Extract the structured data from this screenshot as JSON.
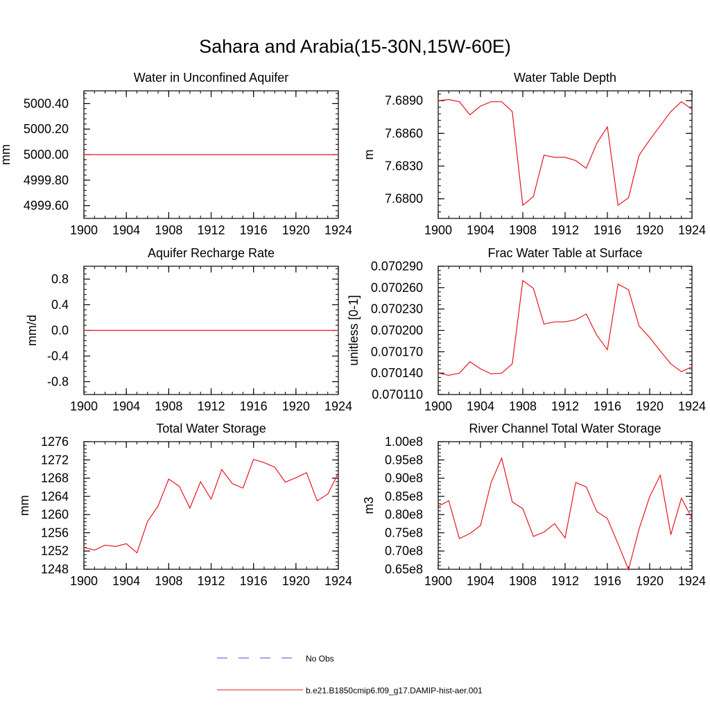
{
  "figure": {
    "title": "Sahara and Arabia(15-30N,15W-60E)",
    "legend": [
      {
        "label": "No Obs",
        "color": "#4a4ad6",
        "style": "dashed"
      },
      {
        "label": "b.e21.B1850cmip6.f09_g17.DAMIP-hist-aer.001",
        "color": "#e8141e",
        "style": "solid"
      }
    ]
  },
  "chart_data": [
    {
      "type": "line",
      "title": "Water in Unconfined Aquifer",
      "xlabel": "",
      "ylabel": "mm",
      "xlim": [
        1900,
        1924
      ],
      "ylim": [
        4999.5,
        5000.5
      ],
      "xticks": [
        "1900",
        "1904",
        "1908",
        "1912",
        "1916",
        "1920",
        "1924"
      ],
      "yticks": [
        {
          "v": 5000.4,
          "label": "5000.40"
        },
        {
          "v": 5000.2,
          "label": "5000.20"
        },
        {
          "v": 5000.0,
          "label": "5000.00"
        },
        {
          "v": 4999.8,
          "label": "4999.80"
        },
        {
          "v": 4999.6,
          "label": "4999.60"
        }
      ],
      "series": [
        {
          "color": "#e8141e",
          "x": [
            1900,
            1901,
            1902,
            1903,
            1904,
            1905,
            1906,
            1907,
            1908,
            1909,
            1910,
            1911,
            1912,
            1913,
            1914,
            1915,
            1916,
            1917,
            1918,
            1919,
            1920,
            1921,
            1922,
            1923,
            1924
          ],
          "values": [
            5000,
            5000,
            5000,
            5000,
            5000,
            5000,
            5000,
            5000,
            5000,
            5000,
            5000,
            5000,
            5000,
            5000,
            5000,
            5000,
            5000,
            5000,
            5000,
            5000,
            5000,
            5000,
            5000,
            5000,
            5000
          ]
        }
      ]
    },
    {
      "type": "line",
      "title": "Water Table Depth",
      "xlabel": "",
      "ylabel": "m",
      "xlim": [
        1900,
        1924
      ],
      "ylim": [
        7.6782,
        7.6899
      ],
      "xticks": [
        "1900",
        "1904",
        "1908",
        "1912",
        "1916",
        "1920",
        "1924"
      ],
      "yticks": [
        {
          "v": 7.689,
          "label": "7.6890"
        },
        {
          "v": 7.686,
          "label": "7.6860"
        },
        {
          "v": 7.683,
          "label": "7.6830"
        },
        {
          "v": 7.68,
          "label": "7.6800"
        }
      ],
      "series": [
        {
          "color": "#e8141e",
          "x": [
            1900,
            1901,
            1902,
            1903,
            1904,
            1905,
            1906,
            1907,
            1908,
            1909,
            1910,
            1911,
            1912,
            1913,
            1914,
            1915,
            1916,
            1917,
            1918,
            1919,
            1920,
            1921,
            1922,
            1923,
            1924
          ],
          "values": [
            7.689,
            7.6891,
            7.6889,
            7.6877,
            7.6885,
            7.6889,
            7.6889,
            7.688,
            7.6794,
            7.6802,
            7.684,
            7.6838,
            7.6838,
            7.6835,
            7.6828,
            7.6851,
            7.6866,
            7.6794,
            7.6801,
            7.684,
            7.6854,
            7.6867,
            7.688,
            7.6889,
            7.6882
          ]
        }
      ]
    },
    {
      "type": "line",
      "title": "Aquifer Recharge Rate",
      "xlabel": "",
      "ylabel": "mm/d",
      "xlim": [
        1900,
        1924
      ],
      "ylim": [
        -1.0,
        1.0
      ],
      "xticks": [
        "1900",
        "1904",
        "1908",
        "1912",
        "1916",
        "1920",
        "1924"
      ],
      "yticks": [
        {
          "v": 0.8,
          "label": "0.8"
        },
        {
          "v": 0.4,
          "label": "0.4"
        },
        {
          "v": 0.0,
          "label": "0.0"
        },
        {
          "v": -0.4,
          "label": "-0.4"
        },
        {
          "v": -0.8,
          "label": "-0.8"
        }
      ],
      "series": [
        {
          "color": "#e8141e",
          "x": [
            1900,
            1901,
            1902,
            1903,
            1904,
            1905,
            1906,
            1907,
            1908,
            1909,
            1910,
            1911,
            1912,
            1913,
            1914,
            1915,
            1916,
            1917,
            1918,
            1919,
            1920,
            1921,
            1922,
            1923,
            1924
          ],
          "values": [
            0,
            0,
            0,
            0,
            0,
            0,
            0,
            0,
            0,
            0,
            0,
            0,
            0,
            0,
            0,
            0,
            0,
            0,
            0,
            0,
            0,
            0,
            0,
            0,
            0
          ]
        }
      ]
    },
    {
      "type": "line",
      "title": "Frac Water Table at Surface",
      "xlabel": "",
      "ylabel": "unitless [0-1]",
      "xlim": [
        1900,
        1924
      ],
      "ylim": [
        0.07011,
        0.07029
      ],
      "xticks": [
        "1900",
        "1904",
        "1908",
        "1912",
        "1916",
        "1920",
        "1924"
      ],
      "yticks": [
        {
          "v": 0.07029,
          "label": "0.070290"
        },
        {
          "v": 0.07026,
          "label": "0.070260"
        },
        {
          "v": 0.07023,
          "label": "0.070230"
        },
        {
          "v": 0.0702,
          "label": "0.070200"
        },
        {
          "v": 0.07017,
          "label": "0.070170"
        },
        {
          "v": 0.07014,
          "label": "0.070140"
        },
        {
          "v": 0.07011,
          "label": "0.070110"
        }
      ],
      "series": [
        {
          "color": "#e8141e",
          "x": [
            1900,
            1901,
            1902,
            1903,
            1904,
            1905,
            1906,
            1907,
            1908,
            1909,
            1910,
            1911,
            1912,
            1913,
            1914,
            1915,
            1916,
            1917,
            1918,
            1919,
            1920,
            1921,
            1922,
            1923,
            1924
          ],
          "values": [
            0.07014,
            0.070137,
            0.07014,
            0.070156,
            0.070146,
            0.070139,
            0.07014,
            0.070153,
            0.07027,
            0.070259,
            0.070209,
            0.070212,
            0.070212,
            0.070215,
            0.070223,
            0.070193,
            0.070173,
            0.070265,
            0.070257,
            0.070206,
            0.07019,
            0.070171,
            0.070153,
            0.070142,
            0.070149
          ]
        }
      ]
    },
    {
      "type": "line",
      "title": "Total Water Storage",
      "xlabel": "",
      "ylabel": "mm",
      "xlim": [
        1900,
        1924
      ],
      "ylim": [
        1248,
        1276
      ],
      "xticks": [
        "1900",
        "1904",
        "1908",
        "1912",
        "1916",
        "1920",
        "1924"
      ],
      "yticks": [
        {
          "v": 1276,
          "label": "1276"
        },
        {
          "v": 1272,
          "label": "1272"
        },
        {
          "v": 1268,
          "label": "1268"
        },
        {
          "v": 1264,
          "label": "1264"
        },
        {
          "v": 1260,
          "label": "1260"
        },
        {
          "v": 1256,
          "label": "1256"
        },
        {
          "v": 1252,
          "label": "1252"
        },
        {
          "v": 1248,
          "label": "1248"
        }
      ],
      "series": [
        {
          "color": "#e8141e",
          "x": [
            1900,
            1901,
            1902,
            1903,
            1904,
            1905,
            1906,
            1907,
            1908,
            1909,
            1910,
            1911,
            1912,
            1913,
            1914,
            1915,
            1916,
            1917,
            1918,
            1919,
            1920,
            1921,
            1922,
            1923,
            1924
          ],
          "values": [
            1252.8,
            1252.2,
            1253.3,
            1253.0,
            1253.6,
            1251.6,
            1258.5,
            1261.9,
            1267.8,
            1266.2,
            1261.4,
            1267.2,
            1263.4,
            1269.9,
            1266.8,
            1265.8,
            1272.1,
            1271.4,
            1270.4,
            1267.1,
            1268.1,
            1269.2,
            1263.0,
            1264.5,
            1269.1
          ]
        }
      ]
    },
    {
      "type": "line",
      "title": "River Channel Total Water Storage",
      "xlabel": "",
      "ylabel": "m3",
      "xlim": [
        1900,
        1924
      ],
      "ylim": [
        65000000.0,
        100000000.0
      ],
      "xticks": [
        "1900",
        "1904",
        "1908",
        "1912",
        "1916",
        "1920",
        "1924"
      ],
      "yticks": [
        {
          "v": 100000000.0,
          "label": "1.00e8"
        },
        {
          "v": 95000000.0,
          "label": "0.95e8"
        },
        {
          "v": 90000000.0,
          "label": "0.90e8"
        },
        {
          "v": 85000000.0,
          "label": "0.85e8"
        },
        {
          "v": 80000000.0,
          "label": "0.80e8"
        },
        {
          "v": 75000000.0,
          "label": "0.75e8"
        },
        {
          "v": 70000000.0,
          "label": "0.70e8"
        },
        {
          "v": 65000000.0,
          "label": "0.65e8"
        }
      ],
      "series": [
        {
          "color": "#e8141e",
          "x": [
            1900,
            1901,
            1902,
            1903,
            1904,
            1905,
            1906,
            1907,
            1908,
            1909,
            1910,
            1911,
            1912,
            1913,
            1914,
            1915,
            1916,
            1917,
            1918,
            1919,
            1920,
            1921,
            1922,
            1923,
            1924
          ],
          "values": [
            82300000.0,
            83800000.0,
            73400000.0,
            74800000.0,
            77000000.0,
            88800000.0,
            95500000.0,
            83500000.0,
            81600000.0,
            74000000.0,
            75200000.0,
            77500000.0,
            73600000.0,
            88800000.0,
            87600000.0,
            80800000.0,
            78900000.0,
            72000000.0,
            64900000.0,
            76100000.0,
            84900000.0,
            90800000.0,
            74500000.0,
            84500000.0,
            79000000.0
          ]
        }
      ]
    }
  ]
}
